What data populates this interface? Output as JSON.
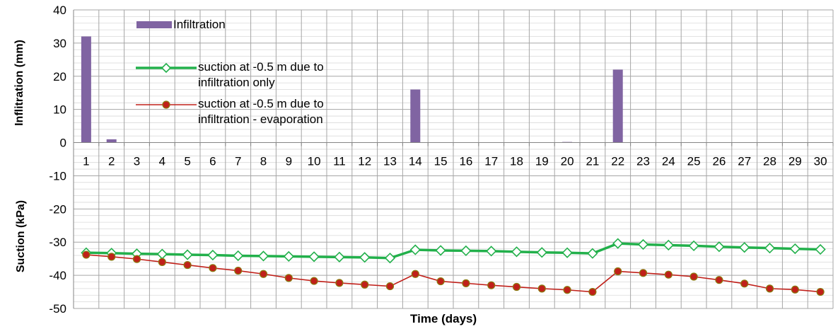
{
  "chart_data": {
    "type": "bar+line",
    "categories": [
      "1",
      "2",
      "3",
      "4",
      "5",
      "6",
      "7",
      "8",
      "9",
      "10",
      "11",
      "12",
      "13",
      "14",
      "15",
      "16",
      "17",
      "18",
      "19",
      "20",
      "21",
      "22",
      "23",
      "24",
      "25",
      "26",
      "27",
      "28",
      "29",
      "30"
    ],
    "ylim": [
      -50,
      40
    ],
    "yticks": [
      "40",
      "30",
      "20",
      "10",
      "0",
      "-10",
      "-20",
      "-30",
      "-40",
      "-50"
    ],
    "ylabel_top": "Inflitration (mm)",
    "ylabel_bottom": "Suction (kPa)",
    "xlabel": "Time (days)",
    "grid": true,
    "legend_position": "top-left",
    "series": [
      {
        "name": "Infiltration",
        "kind": "bar",
        "color": "#8064a2",
        "values": [
          32,
          1,
          0,
          0,
          0,
          0,
          0,
          0,
          0,
          0,
          0,
          0,
          0,
          16,
          0,
          0,
          0,
          0,
          0,
          0.2,
          0,
          22,
          0,
          0,
          0,
          0,
          0,
          0,
          0,
          0
        ]
      },
      {
        "name": "suction at -0.5 m due to infiltration only",
        "kind": "line",
        "marker": "diamond",
        "color": "#22b04b",
        "values": [
          -33.2,
          -33.3,
          -33.5,
          -33.6,
          -33.8,
          -33.9,
          -34.1,
          -34.2,
          -34.3,
          -34.4,
          -34.5,
          -34.6,
          -34.8,
          -32.3,
          -32.5,
          -32.6,
          -32.7,
          -32.9,
          -33.1,
          -33.2,
          -33.4,
          -30.4,
          -30.7,
          -30.9,
          -31.1,
          -31.4,
          -31.6,
          -31.8,
          -32.0,
          -32.2
        ]
      },
      {
        "name": "suction at -0.5 m due to infiltration - evaporation",
        "kind": "line",
        "marker": "circle",
        "color": "#c0201a",
        "values": [
          -33.8,
          -34.4,
          -35.1,
          -36.0,
          -36.9,
          -37.8,
          -38.6,
          -39.6,
          -40.8,
          -41.7,
          -42.3,
          -42.8,
          -43.3,
          -39.6,
          -41.8,
          -42.4,
          -43.0,
          -43.5,
          -44.0,
          -44.4,
          -45.0,
          -38.8,
          -39.3,
          -39.8,
          -40.4,
          -41.4,
          -42.5,
          -44.0,
          -44.3,
          -45.0
        ]
      }
    ]
  }
}
